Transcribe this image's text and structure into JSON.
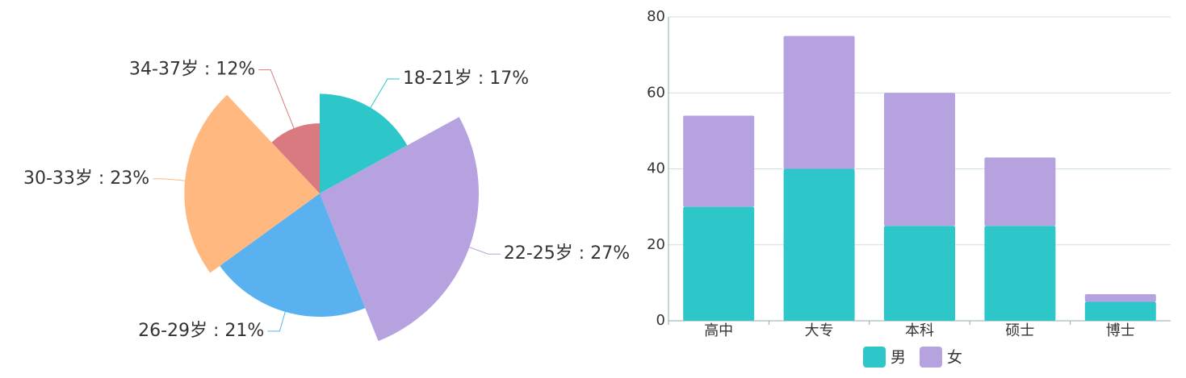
{
  "chart_data": [
    {
      "type": "rose",
      "values": [
        17,
        27,
        21,
        23,
        12
      ],
      "value_labels": [
        "18-21岁 : 17%",
        "22-25岁 : 27%",
        "26-29岁 : 21%",
        "30-33岁 : 23%",
        "34-37岁 : 12%"
      ],
      "colors": [
        "#2ec7c9",
        "#b6a2de",
        "#5ab1ef",
        "#ffb980",
        "#d87a80"
      ]
    },
    {
      "type": "stacked-bar",
      "categories": [
        "高中",
        "大专",
        "本科",
        "硕士",
        "博士"
      ],
      "series": [
        {
          "name": "男",
          "color": "#2ec7c9",
          "values": [
            30,
            40,
            25,
            25,
            5
          ]
        },
        {
          "name": "女",
          "color": "#b6a2de",
          "values": [
            24,
            35,
            35,
            18,
            2
          ]
        }
      ],
      "ylim": [
        0,
        80
      ],
      "yticks": [
        0,
        20,
        40,
        60,
        80
      ],
      "grid": true,
      "legend": "bottom"
    }
  ]
}
